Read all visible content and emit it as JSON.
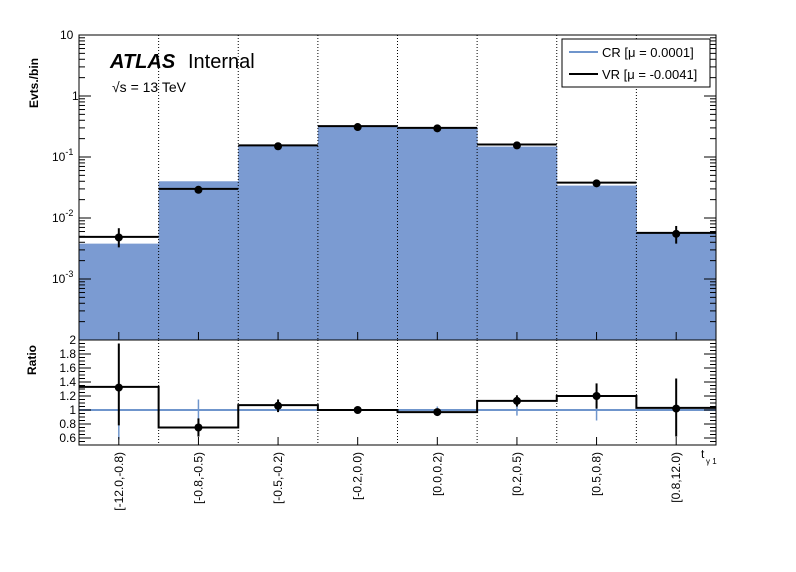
{
  "chart_data": {
    "type": "histogram",
    "bins": [
      "[-12.0,-0.8)",
      "[-0.8,-0.5)",
      "[-0.5,-0.2)",
      "[-0.2,0.0)",
      "[0.0,0.2)",
      "[0.2,0.5)",
      "[0.5,0.8)",
      "[0.8,12.0)"
    ],
    "xlabel_main": "t",
    "xlabel_sub": "γ 1",
    "atlas_label": "ATLAS",
    "atlas_sub": "Internal",
    "energy_label": "√s = 13 TeV",
    "top": {
      "ylabel": "Evts./bin",
      "yscale": "log",
      "ylim": [
        0.0001,
        10
      ],
      "ytick_labels": [
        {
          "base": "10",
          "exp": "-3",
          "value": 0.001
        },
        {
          "base": "10",
          "exp": "-2",
          "value": 0.01
        },
        {
          "base": "10",
          "exp": "-1",
          "value": 0.1
        },
        {
          "base": "1",
          "exp": "",
          "value": 1
        },
        {
          "base": "10",
          "exp": "",
          "value": 10
        }
      ],
      "cr_values": [
        0.0038,
        0.04,
        0.155,
        0.32,
        0.305,
        0.148,
        0.034,
        0.0056
      ],
      "vr_values": [
        0.0049,
        0.03,
        0.155,
        0.32,
        0.3,
        0.16,
        0.038,
        0.0057
      ],
      "points": [
        0.0048,
        0.029,
        0.15,
        0.31,
        0.295,
        0.155,
        0.037,
        0.0055
      ],
      "point_errors": [
        [
          0.0033,
          0.0068
        ],
        [
          0.026,
          0.033
        ],
        [
          0.142,
          0.16
        ],
        [
          0.3,
          0.32
        ],
        [
          0.285,
          0.305
        ],
        [
          0.147,
          0.163
        ],
        [
          0.034,
          0.04
        ],
        [
          0.0038,
          0.0074
        ]
      ],
      "legend": [
        {
          "label": "CR [μ = 0.0001]",
          "color": "#6f95cc"
        },
        {
          "label": "VR [μ = -0.0041]",
          "color": "#000000"
        }
      ]
    },
    "ratio": {
      "ylabel": "Ratio",
      "ylim": [
        0.5,
        2.0
      ],
      "ytick_labels": [
        "0.6",
        "0.8",
        "1",
        "1.2",
        "1.4",
        "1.6",
        "1.8",
        "2"
      ],
      "vr_ratio": [
        1.33,
        0.75,
        1.07,
        1.0,
        0.97,
        1.13,
        1.2,
        1.03
      ],
      "points": [
        1.32,
        0.75,
        1.06,
        1.0,
        0.97,
        1.13,
        1.2,
        1.02
      ],
      "point_errors": [
        [
          0.78,
          1.95
        ],
        [
          0.62,
          0.88
        ],
        [
          0.97,
          1.15
        ],
        [
          0.96,
          1.04
        ],
        [
          0.93,
          1.02
        ],
        [
          1.05,
          1.21
        ],
        [
          1.02,
          1.38
        ],
        [
          0.62,
          1.45
        ]
      ],
      "cr_errors": [
        [
          0.58,
          1.02
        ],
        [
          0.8,
          1.15
        ],
        [
          0.98,
          1.02
        ],
        [
          0.98,
          1.02
        ],
        [
          0.97,
          1.05
        ],
        [
          0.92,
          1.08
        ],
        [
          0.85,
          1.1
        ],
        [
          0.9,
          1.1
        ]
      ]
    },
    "colors": {
      "cr_fill": "#7b9bd2",
      "cr_line": "#6f95cc",
      "vr_line": "#000000"
    }
  }
}
